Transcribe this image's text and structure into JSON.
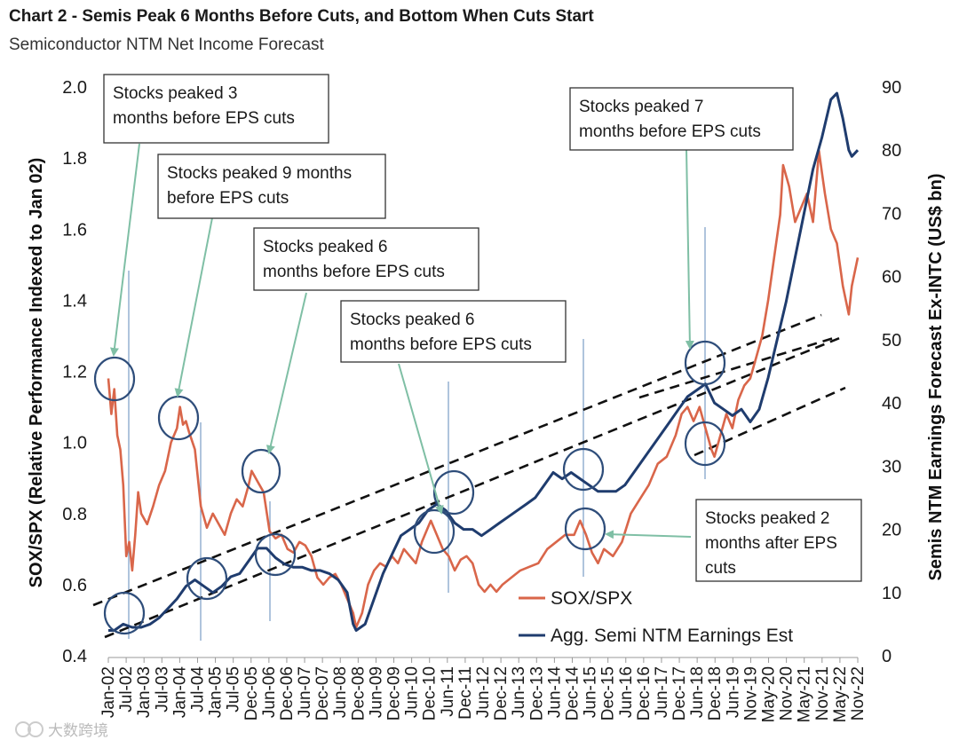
{
  "chart_data": {
    "type": "line",
    "title": "Chart 2 - Semis Peak 6 Months Before Cuts, and Bottom When Cuts Start",
    "subtitle": "Semiconductor NTM Net Income Forecast",
    "ylabel_left": "SOX/SPX (Relative Performance Indexed to Jan 02)",
    "ylabel_right": "Semis NTM Earnings Forecast Ex-INTC (US$ bn)",
    "ylim_left": [
      0.4,
      2.0
    ],
    "ylim_right": [
      0,
      90
    ],
    "yticks_left": [
      "0.4",
      "0.6",
      "0.8",
      "1.0",
      "1.2",
      "1.4",
      "1.6",
      "1.8",
      "2.0"
    ],
    "yticks_right": [
      "0",
      "10",
      "20",
      "30",
      "40",
      "50",
      "60",
      "70",
      "80",
      "90"
    ],
    "x_start": "2002-01",
    "x_end": "2022-12",
    "xticks": [
      "Jan-02",
      "Jul-02",
      "Jan-03",
      "Jul-03",
      "Jan-04",
      "Jul-04",
      "Jan-05",
      "Jul-05",
      "Dec-05",
      "Jun-06",
      "Dec-06",
      "Jun-07",
      "Dec-07",
      "Jun-08",
      "Dec-08",
      "Jun-09",
      "Dec-09",
      "Jun-10",
      "Dec-10",
      "Jun-11",
      "Dec-11",
      "Jun-12",
      "Dec-12",
      "Jun-13",
      "Dec-13",
      "Jun-14",
      "Dec-14",
      "Jun-15",
      "Dec-15",
      "Jun-16",
      "Dec-16",
      "Jun-17",
      "Dec-17",
      "Jun-18",
      "Dec-18",
      "Jun-19",
      "Nov-19",
      "May-20",
      "Nov-20",
      "May-21",
      "Nov-21",
      "May-22",
      "Nov-22"
    ],
    "series": [
      {
        "name": "SOX/SPX",
        "axis": "left",
        "color": "#d9664a",
        "points": [
          [
            "2002-01",
            1.18
          ],
          [
            "2002-02",
            1.08
          ],
          [
            "2002-03",
            1.15
          ],
          [
            "2002-04",
            1.02
          ],
          [
            "2002-05",
            0.98
          ],
          [
            "2002-06",
            0.88
          ],
          [
            "2002-07",
            0.68
          ],
          [
            "2002-08",
            0.72
          ],
          [
            "2002-09",
            0.64
          ],
          [
            "2002-10",
            0.74
          ],
          [
            "2002-11",
            0.86
          ],
          [
            "2002-12",
            0.8
          ],
          [
            "2003-02",
            0.77
          ],
          [
            "2003-04",
            0.82
          ],
          [
            "2003-06",
            0.88
          ],
          [
            "2003-08",
            0.92
          ],
          [
            "2003-10",
            1.0
          ],
          [
            "2003-12",
            1.04
          ],
          [
            "2004-01",
            1.1
          ],
          [
            "2004-02",
            1.05
          ],
          [
            "2004-03",
            1.06
          ],
          [
            "2004-04",
            1.03
          ],
          [
            "2004-06",
            0.98
          ],
          [
            "2004-08",
            0.82
          ],
          [
            "2004-10",
            0.76
          ],
          [
            "2004-12",
            0.8
          ],
          [
            "2005-02",
            0.77
          ],
          [
            "2005-04",
            0.74
          ],
          [
            "2005-06",
            0.8
          ],
          [
            "2005-08",
            0.84
          ],
          [
            "2005-10",
            0.82
          ],
          [
            "2005-12",
            0.88
          ],
          [
            "2006-01",
            0.92
          ],
          [
            "2006-03",
            0.89
          ],
          [
            "2006-05",
            0.86
          ],
          [
            "2006-07",
            0.75
          ],
          [
            "2006-09",
            0.73
          ],
          [
            "2006-11",
            0.74
          ],
          [
            "2007-01",
            0.7
          ],
          [
            "2007-03",
            0.69
          ],
          [
            "2007-05",
            0.72
          ],
          [
            "2007-07",
            0.71
          ],
          [
            "2007-09",
            0.68
          ],
          [
            "2007-11",
            0.62
          ],
          [
            "2008-01",
            0.6
          ],
          [
            "2008-03",
            0.62
          ],
          [
            "2008-05",
            0.63
          ],
          [
            "2008-07",
            0.6
          ],
          [
            "2008-09",
            0.56
          ],
          [
            "2008-11",
            0.52
          ],
          [
            "2008-12",
            0.48
          ],
          [
            "2009-02",
            0.52
          ],
          [
            "2009-04",
            0.6
          ],
          [
            "2009-06",
            0.64
          ],
          [
            "2009-08",
            0.66
          ],
          [
            "2009-10",
            0.65
          ],
          [
            "2009-12",
            0.68
          ],
          [
            "2010-02",
            0.66
          ],
          [
            "2010-04",
            0.7
          ],
          [
            "2010-06",
            0.68
          ],
          [
            "2010-08",
            0.66
          ],
          [
            "2010-10",
            0.72
          ],
          [
            "2010-12",
            0.76
          ],
          [
            "2011-01",
            0.78
          ],
          [
            "2011-03",
            0.74
          ],
          [
            "2011-05",
            0.7
          ],
          [
            "2011-07",
            0.68
          ],
          [
            "2011-09",
            0.64
          ],
          [
            "2011-11",
            0.67
          ],
          [
            "2012-01",
            0.68
          ],
          [
            "2012-03",
            0.66
          ],
          [
            "2012-05",
            0.6
          ],
          [
            "2012-07",
            0.58
          ],
          [
            "2012-09",
            0.6
          ],
          [
            "2012-11",
            0.58
          ],
          [
            "2013-01",
            0.6
          ],
          [
            "2013-04",
            0.62
          ],
          [
            "2013-07",
            0.64
          ],
          [
            "2013-10",
            0.65
          ],
          [
            "2014-01",
            0.66
          ],
          [
            "2014-04",
            0.7
          ],
          [
            "2014-07",
            0.72
          ],
          [
            "2014-10",
            0.74
          ],
          [
            "2015-01",
            0.74
          ],
          [
            "2015-03",
            0.78
          ],
          [
            "2015-05",
            0.74
          ],
          [
            "2015-07",
            0.69
          ],
          [
            "2015-09",
            0.66
          ],
          [
            "2015-11",
            0.7
          ],
          [
            "2016-02",
            0.68
          ],
          [
            "2016-05",
            0.72
          ],
          [
            "2016-08",
            0.8
          ],
          [
            "2016-11",
            0.84
          ],
          [
            "2017-02",
            0.88
          ],
          [
            "2017-05",
            0.94
          ],
          [
            "2017-08",
            0.96
          ],
          [
            "2017-11",
            1.02
          ],
          [
            "2018-01",
            1.08
          ],
          [
            "2018-03",
            1.1
          ],
          [
            "2018-05",
            1.06
          ],
          [
            "2018-07",
            1.1
          ],
          [
            "2018-09",
            1.04
          ],
          [
            "2018-11",
            0.98
          ],
          [
            "2018-12",
            0.96
          ],
          [
            "2019-02",
            1.02
          ],
          [
            "2019-04",
            1.08
          ],
          [
            "2019-06",
            1.04
          ],
          [
            "2019-08",
            1.12
          ],
          [
            "2019-10",
            1.16
          ],
          [
            "2019-12",
            1.18
          ],
          [
            "2020-02",
            1.24
          ],
          [
            "2020-04",
            1.3
          ],
          [
            "2020-06",
            1.4
          ],
          [
            "2020-08",
            1.52
          ],
          [
            "2020-10",
            1.64
          ],
          [
            "2020-11",
            1.78
          ],
          [
            "2021-01",
            1.72
          ],
          [
            "2021-03",
            1.62
          ],
          [
            "2021-05",
            1.66
          ],
          [
            "2021-07",
            1.7
          ],
          [
            "2021-09",
            1.62
          ],
          [
            "2021-11",
            1.82
          ],
          [
            "2021-12",
            1.76
          ],
          [
            "2022-01",
            1.7
          ],
          [
            "2022-03",
            1.6
          ],
          [
            "2022-05",
            1.56
          ],
          [
            "2022-07",
            1.44
          ],
          [
            "2022-09",
            1.36
          ],
          [
            "2022-10",
            1.44
          ],
          [
            "2022-12",
            1.52
          ]
        ]
      },
      {
        "name": "Agg. Semi NTM Earnings Est",
        "axis": "right",
        "color": "#1f3c6e",
        "points": [
          [
            "2002-01",
            4
          ],
          [
            "2002-03",
            4
          ],
          [
            "2002-06",
            5
          ],
          [
            "2002-09",
            4.5
          ],
          [
            "2002-12",
            4.5
          ],
          [
            "2003-03",
            5
          ],
          [
            "2003-06",
            6
          ],
          [
            "2003-09",
            7.5
          ],
          [
            "2003-12",
            9
          ],
          [
            "2004-03",
            11
          ],
          [
            "2004-06",
            12
          ],
          [
            "2004-09",
            11
          ],
          [
            "2004-12",
            10
          ],
          [
            "2005-03",
            11
          ],
          [
            "2005-06",
            12.5
          ],
          [
            "2005-09",
            13
          ],
          [
            "2005-12",
            15
          ],
          [
            "2006-03",
            17
          ],
          [
            "2006-06",
            17
          ],
          [
            "2006-09",
            15.5
          ],
          [
            "2006-12",
            14.5
          ],
          [
            "2007-03",
            14
          ],
          [
            "2007-06",
            14
          ],
          [
            "2007-09",
            13.5
          ],
          [
            "2007-12",
            13.5
          ],
          [
            "2008-03",
            13
          ],
          [
            "2008-06",
            12
          ],
          [
            "2008-09",
            10
          ],
          [
            "2008-11",
            5
          ],
          [
            "2008-12",
            4
          ],
          [
            "2009-03",
            5
          ],
          [
            "2009-06",
            9
          ],
          [
            "2009-09",
            13
          ],
          [
            "2009-12",
            16
          ],
          [
            "2010-03",
            19
          ],
          [
            "2010-06",
            20
          ],
          [
            "2010-09",
            21
          ],
          [
            "2010-12",
            23
          ],
          [
            "2011-03",
            24
          ],
          [
            "2011-06",
            23
          ],
          [
            "2011-09",
            21
          ],
          [
            "2011-12",
            20
          ],
          [
            "2012-03",
            20
          ],
          [
            "2012-06",
            19
          ],
          [
            "2012-09",
            20
          ],
          [
            "2012-12",
            21
          ],
          [
            "2013-03",
            22
          ],
          [
            "2013-06",
            23
          ],
          [
            "2013-09",
            24
          ],
          [
            "2013-12",
            25
          ],
          [
            "2014-03",
            27
          ],
          [
            "2014-06",
            29
          ],
          [
            "2014-09",
            28
          ],
          [
            "2014-12",
            29
          ],
          [
            "2015-03",
            28
          ],
          [
            "2015-06",
            27
          ],
          [
            "2015-09",
            26
          ],
          [
            "2015-12",
            26
          ],
          [
            "2016-03",
            26
          ],
          [
            "2016-06",
            27
          ],
          [
            "2016-09",
            29
          ],
          [
            "2016-12",
            31
          ],
          [
            "2017-03",
            33
          ],
          [
            "2017-06",
            35
          ],
          [
            "2017-09",
            37
          ],
          [
            "2017-12",
            39
          ],
          [
            "2018-03",
            41
          ],
          [
            "2018-06",
            42
          ],
          [
            "2018-09",
            43
          ],
          [
            "2018-12",
            40
          ],
          [
            "2019-03",
            39
          ],
          [
            "2019-06",
            38
          ],
          [
            "2019-09",
            39
          ],
          [
            "2019-12",
            37
          ],
          [
            "2020-03",
            39
          ],
          [
            "2020-06",
            44
          ],
          [
            "2020-09",
            50
          ],
          [
            "2020-12",
            56
          ],
          [
            "2021-03",
            63
          ],
          [
            "2021-06",
            70
          ],
          [
            "2021-09",
            77
          ],
          [
            "2021-12",
            82
          ],
          [
            "2022-03",
            88
          ],
          [
            "2022-05",
            89
          ],
          [
            "2022-07",
            85
          ],
          [
            "2022-09",
            80
          ],
          [
            "2022-10",
            79
          ],
          [
            "2022-12",
            80
          ]
        ]
      }
    ],
    "annotations": [
      "Stocks peaked 3 months before EPS cuts",
      "Stocks peaked 9 months before EPS cuts",
      "Stocks peaked 6 months before EPS cuts",
      "Stocks peaked 6 months before EPS cuts",
      "Stocks peaked 7 months before EPS cuts",
      "Stocks peaked 2 months after EPS cuts"
    ],
    "legend_position": "bottom-right"
  },
  "annotation_boxes": [
    {
      "lines": [
        "Stocks peaked 3",
        "months before EPS cuts"
      ]
    },
    {
      "lines": [
        "Stocks peaked 9 months",
        "before EPS cuts"
      ]
    },
    {
      "lines": [
        "Stocks peaked 6",
        "months before EPS cuts"
      ]
    },
    {
      "lines": [
        "Stocks peaked 6",
        "months before EPS cuts"
      ]
    },
    {
      "lines": [
        "Stocks peaked 7",
        "months before EPS cuts"
      ]
    },
    {
      "lines": [
        "Stocks peaked 2",
        "months after EPS",
        "cuts"
      ]
    }
  ],
  "legend": [
    {
      "label": "SOX/SPX",
      "color": "#d9664a"
    },
    {
      "label": "Agg. Semi NTM Earnings Est",
      "color": "#1f3c6e"
    }
  ],
  "colors": {
    "arrow": "#7fbfa5",
    "circle": "#2e4d7a",
    "vline": "#7a9cc6",
    "trend": "#111111"
  },
  "watermark": "大数跨境"
}
